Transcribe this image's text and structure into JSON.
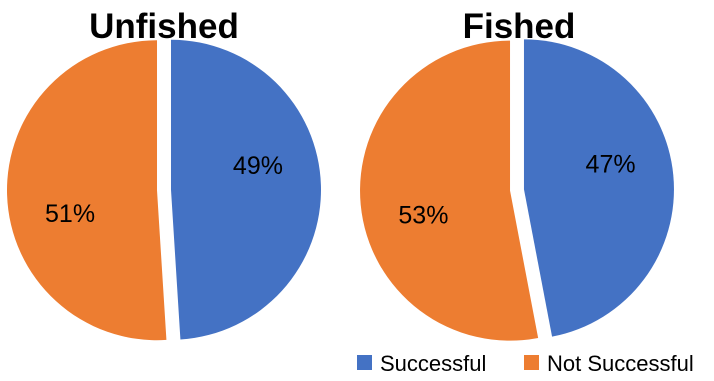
{
  "chart_data": [
    {
      "type": "pie",
      "title": "Unfished",
      "categories": [
        "Successful",
        "Not Successful"
      ],
      "values": [
        49,
        51
      ],
      "labels": [
        "49%",
        "51%"
      ],
      "colors": [
        "#4472C4",
        "#ED7D31"
      ]
    },
    {
      "type": "pie",
      "title": "Fished",
      "categories": [
        "Successful",
        "Not Successful"
      ],
      "values": [
        47,
        53
      ],
      "labels": [
        "47%",
        "53%"
      ],
      "colors": [
        "#4472C4",
        "#ED7D31"
      ]
    }
  ],
  "legend": {
    "placement": "bottom-right",
    "items": [
      {
        "label": "Successful",
        "color": "#4472C4"
      },
      {
        "label": "Not Successful",
        "color": "#ED7D31"
      }
    ]
  }
}
